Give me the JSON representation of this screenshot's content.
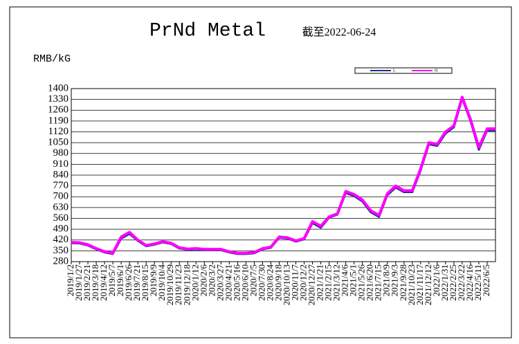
{
  "chart_data": {
    "type": "line",
    "title": "PrNd Metal",
    "subtitle": "截至2022-06-24",
    "y_label": "RMB/kG",
    "categories": [
      "2019/1/2",
      "2019/1/27",
      "2019/2/21",
      "2019/3/18",
      "2019/4/12",
      "2019/5/7",
      "2019/6/1",
      "2019/6/26",
      "2019/7/21",
      "2019/8/15",
      "2019/9/9",
      "2019/10/4",
      "2019/10/29",
      "2019/11/23",
      "2019/12/18",
      "2020/1/12",
      "2020/2/6",
      "2020/3/2",
      "2020/3/27",
      "2020/4/21",
      "2020/5/16",
      "2020/6/10",
      "2020/7/5",
      "2020/7/30",
      "2020/8/24",
      "2020/9/18",
      "2020/10/13",
      "2020/11/7",
      "2020/12/2",
      "2020/12/27",
      "2021/1/21",
      "2021/2/15",
      "2021/3/12",
      "2021/4/6",
      "2021/5/1",
      "2021/5/26",
      "2021/6/20",
      "2021/7/15",
      "2021/8/9",
      "2021/9/3",
      "2021/9/28",
      "2021/10/23",
      "2021/11/17",
      "2021/12/12",
      "2022/1/6",
      "2022/1/31",
      "2022/2/25",
      "2022/3/22",
      "2022/4/16",
      "2022/5/11",
      "2022/6/5",
      null
    ],
    "series": [
      {
        "name": "L",
        "color": "#1f2a8a",
        "values": [
          400,
          398,
          385,
          360,
          340,
          330,
          430,
          460,
          415,
          380,
          390,
          405,
          395,
          365,
          357,
          360,
          355,
          355,
          355,
          340,
          330,
          330,
          335,
          360,
          370,
          435,
          430,
          410,
          425,
          530,
          500,
          565,
          585,
          725,
          705,
          670,
          600,
          570,
          710,
          760,
          730,
          730,
          870,
          1040,
          1030,
          1110,
          1150,
          1335,
          1190,
          1005,
          1130,
          1130
        ]
      },
      {
        "name": "H",
        "color": "#ff00ff",
        "values": [
          405,
          403,
          390,
          365,
          345,
          335,
          440,
          470,
          420,
          385,
          395,
          410,
          400,
          370,
          362,
          365,
          360,
          360,
          360,
          345,
          335,
          335,
          340,
          365,
          375,
          440,
          435,
          415,
          430,
          540,
          510,
          570,
          590,
          735,
          715,
          680,
          610,
          580,
          720,
          770,
          740,
          740,
          880,
          1050,
          1040,
          1120,
          1160,
          1345,
          1200,
          1020,
          1140,
          1140
        ]
      }
    ],
    "ylim": [
      280,
      1400
    ],
    "yticks": [
      280,
      350,
      420,
      490,
      560,
      630,
      700,
      770,
      840,
      910,
      980,
      1050,
      1120,
      1190,
      1260,
      1330,
      1400
    ],
    "grid": true
  }
}
